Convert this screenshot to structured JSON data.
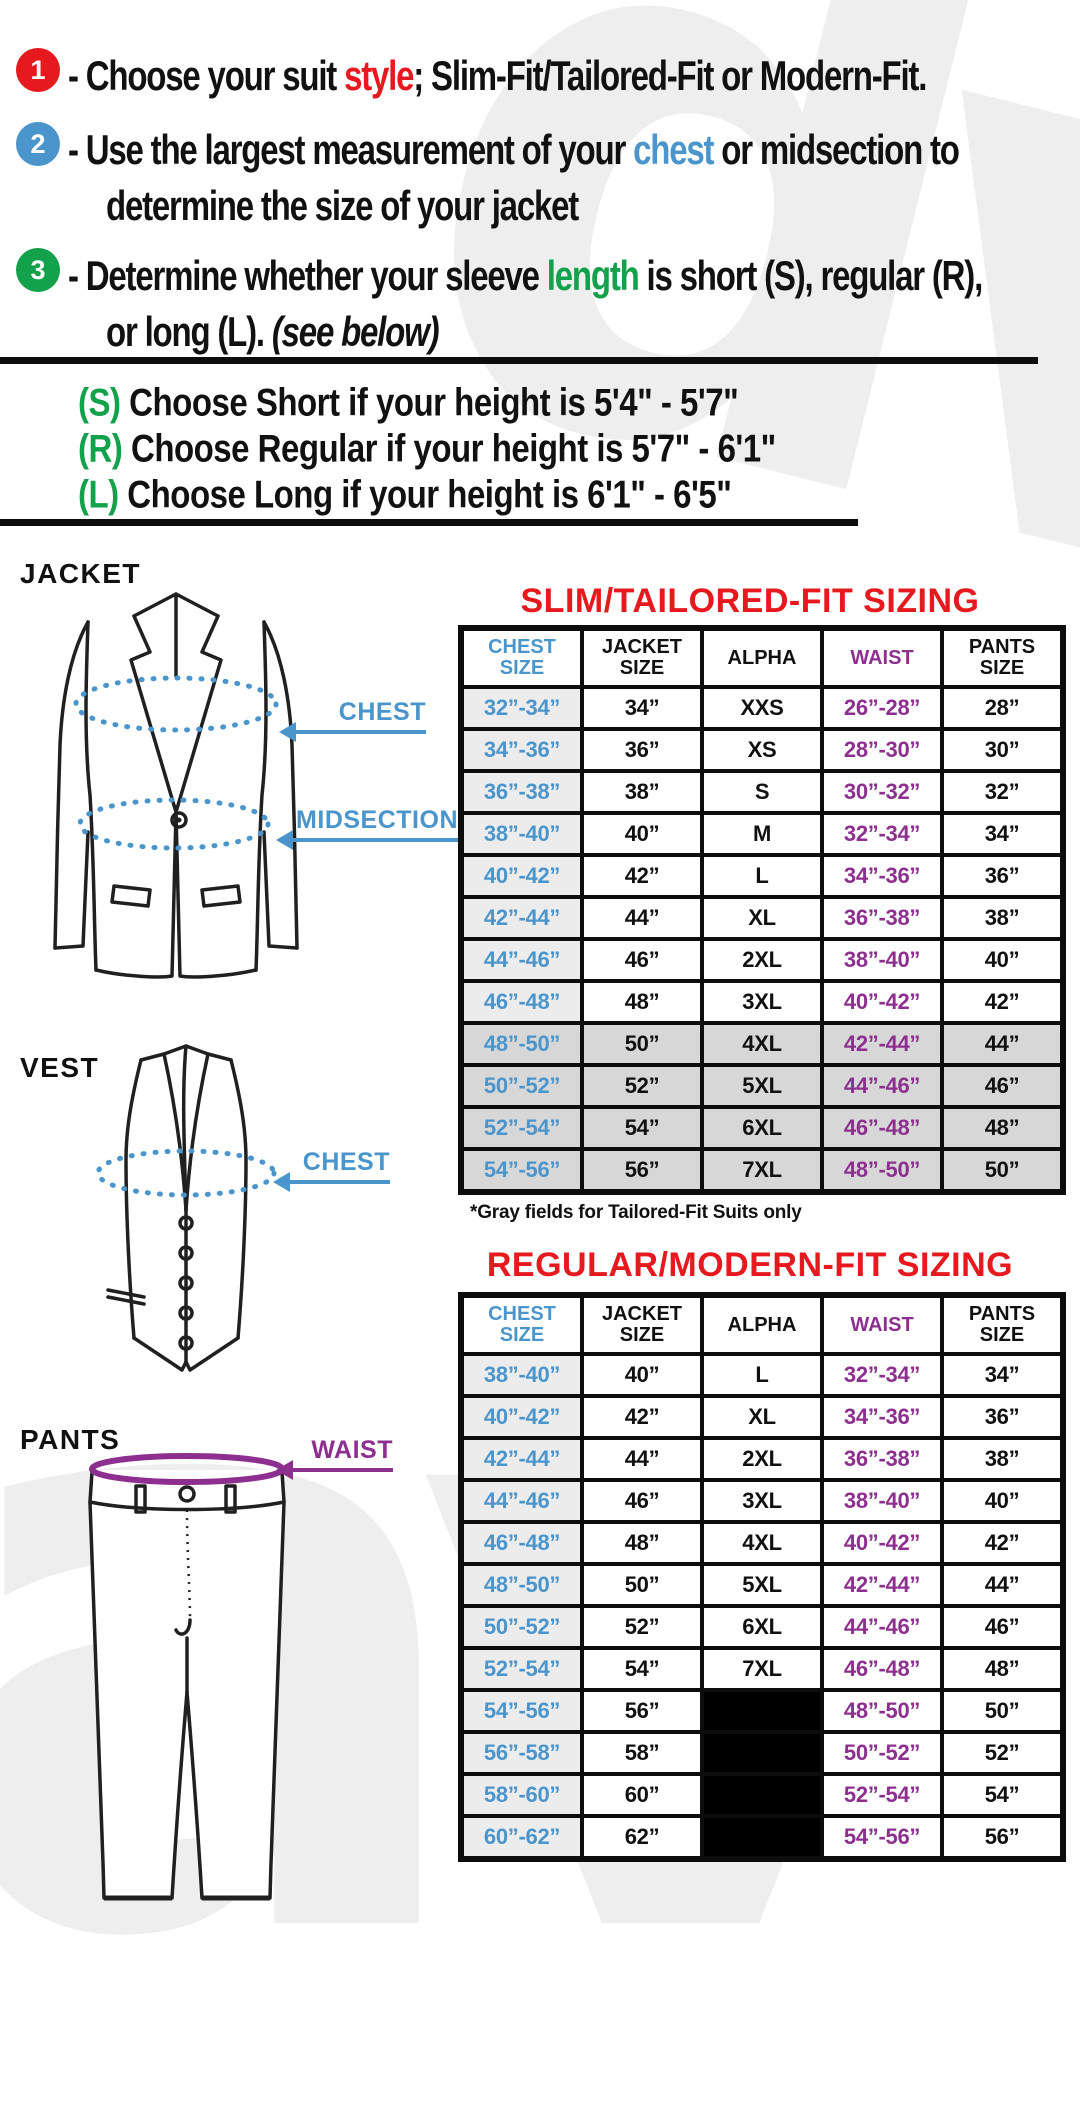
{
  "instructions": {
    "items": [
      {
        "number": "1",
        "badge_color": "#e6191e",
        "lines": [
          [
            {
              "t": "- Choose your suit "
            },
            {
              "t": "style",
              "c": "red"
            },
            {
              "t": "; Slim-Fit/Tailored-Fit or Modern-Fit."
            }
          ]
        ]
      },
      {
        "number": "2",
        "badge_color": "#4a95cc",
        "lines": [
          [
            {
              "t": "- Use the largest measurement of your "
            },
            {
              "t": "chest",
              "c": "blue"
            },
            {
              "t": " or midsection to"
            }
          ],
          [
            {
              "t": "determine the size of your jacket"
            }
          ]
        ]
      },
      {
        "number": "3",
        "badge_color": "#13a14c",
        "lines": [
          [
            {
              "t": "- Determine whether your sleeve "
            },
            {
              "t": "length",
              "c": "green"
            },
            {
              "t": " is short (S), regular (R),"
            }
          ],
          [
            {
              "t": "or long (L). "
            },
            {
              "t": "(see below)",
              "c": "italic"
            }
          ]
        ]
      }
    ]
  },
  "height_guide": {
    "lines": [
      [
        {
          "t": "(S)",
          "c": "green"
        },
        {
          "t": " Choose Short if your height is 5'4\" - 5'7\""
        }
      ],
      [
        {
          "t": "(R)",
          "c": "green"
        },
        {
          "t": " Choose Regular if your height is  5'7\" - 6'1\""
        }
      ],
      [
        {
          "t": "(L)",
          "c": "green"
        },
        {
          "t": " Choose Long if your height is  6'1\" - 6'5\""
        }
      ]
    ]
  },
  "sections": {
    "jacket_label": "JACKET",
    "vest_label": "VEST",
    "pants_label": "PANTS"
  },
  "measure_labels": {
    "jacket_chest": "CHEST",
    "jacket_midsection": "MIDSECTION",
    "vest_chest": "CHEST",
    "pants_waist": "WAIST"
  },
  "tables": [
    {
      "title": "SLIM/TAILORED-FIT SIZING",
      "headers": [
        "CHEST SIZE",
        "JACKET SIZE",
        "ALPHA",
        "WAIST",
        "PANTS SIZE"
      ],
      "rows": [
        [
          "32”-34”",
          "34”",
          "XXS",
          "26”-28”",
          "28”"
        ],
        [
          "34”-36”",
          "36”",
          "XS",
          "28”-30”",
          "30”"
        ],
        [
          "36”-38”",
          "38”",
          "S",
          "30”-32”",
          "32”"
        ],
        [
          "38”-40”",
          "40”",
          "M",
          "32”-34”",
          "34”"
        ],
        [
          "40”-42”",
          "42”",
          "L",
          "34”-36”",
          "36”"
        ],
        [
          "42”-44”",
          "44”",
          "XL",
          "36”-38”",
          "38”"
        ],
        [
          "44”-46”",
          "46”",
          "2XL",
          "38”-40”",
          "40”"
        ],
        [
          "46”-48”",
          "48”",
          "3XL",
          "40”-42”",
          "42”"
        ],
        [
          "48”-50”",
          "50”",
          "4XL",
          "42”-44”",
          "44”"
        ],
        [
          "50”-52”",
          "52”",
          "5XL",
          "44”-46”",
          "46”"
        ],
        [
          "52”-54”",
          "54”",
          "6XL",
          "46”-48”",
          "48”"
        ],
        [
          "54”-56”",
          "56”",
          "7XL",
          "48”-50”",
          "50”"
        ]
      ],
      "shaded_rows": [
        8,
        9,
        10,
        11
      ],
      "note": "*Gray fields for Tailored-Fit Suits only"
    },
    {
      "title": "REGULAR/MODERN-FIT SIZING",
      "headers": [
        "CHEST SIZE",
        "JACKET SIZE",
        "ALPHA",
        "WAIST",
        "PANTS SIZE"
      ],
      "rows": [
        [
          "38”-40”",
          "40”",
          "L",
          "32”-34”",
          "34”"
        ],
        [
          "40”-42”",
          "42”",
          "XL",
          "34”-36”",
          "36”"
        ],
        [
          "42”-44”",
          "44”",
          "2XL",
          "36”-38”",
          "38”"
        ],
        [
          "44”-46”",
          "46”",
          "3XL",
          "38”-40”",
          "40”"
        ],
        [
          "46”-48”",
          "48”",
          "4XL",
          "40”-42”",
          "42”"
        ],
        [
          "48”-50”",
          "50”",
          "5XL",
          "42”-44”",
          "44”"
        ],
        [
          "50”-52”",
          "52”",
          "6XL",
          "44”-46”",
          "46”"
        ],
        [
          "52”-54”",
          "54”",
          "7XL",
          "46”-48”",
          "48”"
        ],
        [
          "54”-56”",
          "56”",
          "",
          "48”-50”",
          "50”"
        ],
        [
          "56”-58”",
          "58”",
          "",
          "50”-52”",
          "52”"
        ],
        [
          "58”-60”",
          "60”",
          "",
          "52”-54”",
          "54”"
        ],
        [
          "60”-62”",
          "62”",
          "",
          "54”-56”",
          "56”"
        ]
      ],
      "black_alpha_rows": [
        8,
        9,
        10,
        11
      ]
    }
  ],
  "colors": {
    "accent_red": "#e6191e",
    "accent_blue": "#4a95cc",
    "accent_green": "#13a14c",
    "accent_purple": "#8d2f8f",
    "shaded_row_bg": "#d7d7d7",
    "chest_column_bg": "#ececec",
    "black_cell_bg": "#000000",
    "watermark": "#eeeeee"
  },
  "watermark_text": {
    "top": "dv",
    "bottom": "av"
  }
}
